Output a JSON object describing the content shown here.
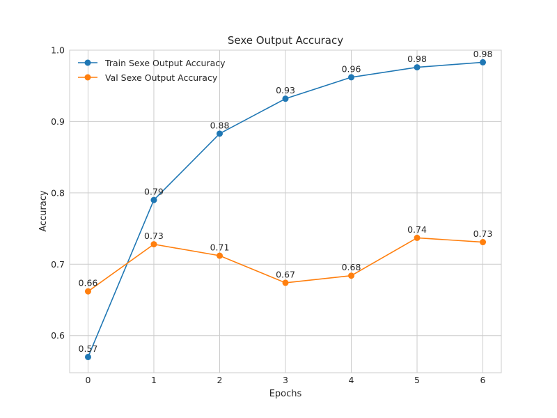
{
  "chart_data": {
    "type": "line",
    "title": "Sexe Output Accuracy",
    "xlabel": "Epochs",
    "ylabel": "Accuracy",
    "x": [
      0,
      1,
      2,
      3,
      4,
      5,
      6
    ],
    "xlim": [
      -0.28,
      6.28
    ],
    "ylim": [
      0.548,
      1.0
    ],
    "yticks": [
      0.6,
      0.7,
      0.8,
      0.9,
      1.0
    ],
    "ytick_labels": [
      "0.6",
      "0.7",
      "0.8",
      "0.9",
      "1.0"
    ],
    "xtick_labels": [
      "0",
      "1",
      "2",
      "3",
      "4",
      "5",
      "6"
    ],
    "grid": true,
    "legend_position": "top-left",
    "series": [
      {
        "name": "Train Sexe Output Accuracy",
        "color": "#1f77b4",
        "marker": "circle",
        "values": [
          0.57,
          0.79,
          0.883,
          0.932,
          0.962,
          0.976,
          0.983
        ],
        "labels": [
          "0.57",
          "0.79",
          "0.88",
          "0.93",
          "0.96",
          "0.98",
          "0.98"
        ]
      },
      {
        "name": "Val Sexe Output Accuracy",
        "color": "#ff7f0e",
        "marker": "circle",
        "values": [
          0.662,
          0.728,
          0.712,
          0.674,
          0.684,
          0.737,
          0.731
        ],
        "labels": [
          "0.66",
          "0.73",
          "0.71",
          "0.67",
          "0.68",
          "0.74",
          "0.73"
        ]
      }
    ]
  }
}
